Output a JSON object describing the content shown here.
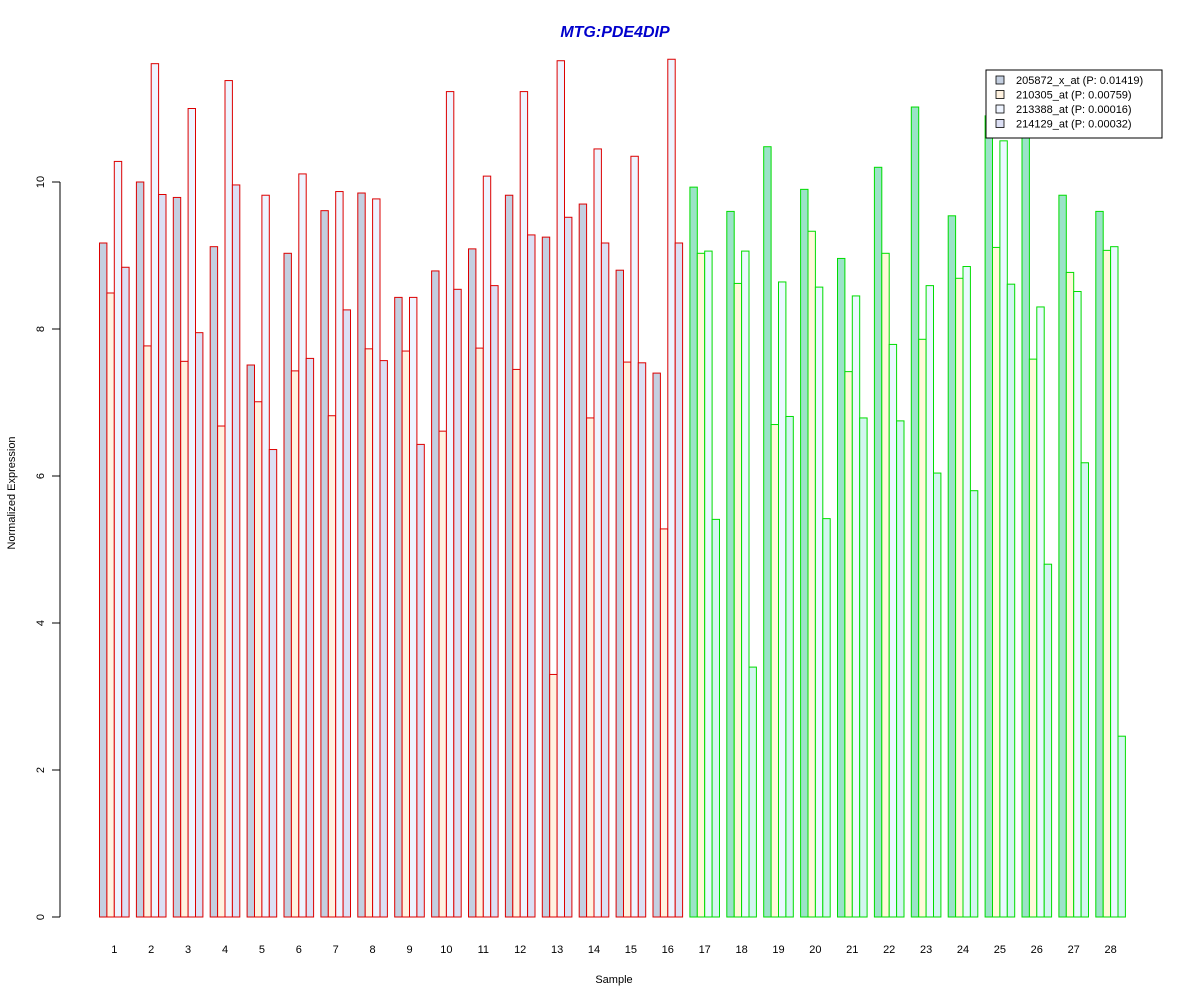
{
  "chart_data": {
    "type": "bar",
    "title": "MTG:PDE4DIP",
    "xlabel": "Sample",
    "ylabel": "Normalized Expression",
    "ylim": [
      0,
      12
    ],
    "y_ticks": [
      0,
      2,
      4,
      6,
      8,
      10
    ],
    "categories": [
      "1",
      "2",
      "3",
      "4",
      "5",
      "6",
      "7",
      "8",
      "9",
      "10",
      "11",
      "12",
      "13",
      "14",
      "15",
      "16",
      "17",
      "18",
      "19",
      "20",
      "21",
      "22",
      "23",
      "24",
      "25",
      "26",
      "27",
      "28"
    ],
    "group_outline_colors": [
      "#dd0000",
      "#dd0000",
      "#dd0000",
      "#dd0000",
      "#dd0000",
      "#dd0000",
      "#dd0000",
      "#dd0000",
      "#dd0000",
      "#dd0000",
      "#dd0000",
      "#dd0000",
      "#dd0000",
      "#dd0000",
      "#dd0000",
      "#dd0000",
      "#00dd00",
      "#00dd00",
      "#00dd00",
      "#00dd00",
      "#00dd00",
      "#00dd00",
      "#00dd00",
      "#00dd00",
      "#00dd00",
      "#00dd00",
      "#00dd00",
      "#00dd00"
    ],
    "series": [
      {
        "name": "205872_x_at (P: 0.01419)",
        "values": [
          9.17,
          10.0,
          9.79,
          9.12,
          7.51,
          9.03,
          9.61,
          9.85,
          8.43,
          8.79,
          9.09,
          9.82,
          9.25,
          9.7,
          8.8,
          7.4,
          9.93,
          9.6,
          10.48,
          9.9,
          8.96,
          10.2,
          11.02,
          9.54,
          10.9,
          10.9,
          9.82,
          9.6
        ],
        "fill_red": "#c4cfe0",
        "fill_green": "#9be3c8"
      },
      {
        "name": "210305_at (P: 0.00759)",
        "values": [
          8.49,
          7.77,
          7.56,
          6.68,
          7.01,
          7.43,
          6.82,
          7.73,
          7.7,
          6.61,
          7.74,
          7.45,
          3.3,
          6.79,
          7.55,
          5.28,
          9.03,
          8.62,
          6.7,
          9.33,
          7.42,
          9.03,
          7.86,
          8.69,
          9.11,
          7.59,
          8.77,
          9.07
        ],
        "fill_red": "#fff2e0",
        "fill_green": "#fff9d8"
      },
      {
        "name": "213388_at (P: 0.00016)",
        "values": [
          10.28,
          11.61,
          11.0,
          11.38,
          9.82,
          10.11,
          9.87,
          9.77,
          8.43,
          11.23,
          10.08,
          11.23,
          11.65,
          10.45,
          10.35,
          11.67,
          9.06,
          9.06,
          8.64,
          8.57,
          8.45,
          7.79,
          8.59,
          8.85,
          10.56,
          8.3,
          8.51,
          9.12
        ],
        "fill_red": "#eef4ff",
        "fill_green": "#eaf8ff"
      },
      {
        "name": "214129_at (P: 0.00032)",
        "values": [
          8.84,
          9.83,
          7.95,
          9.96,
          6.36,
          7.6,
          8.26,
          7.57,
          6.43,
          8.54,
          8.59,
          9.28,
          9.52,
          9.17,
          7.54,
          9.17,
          5.41,
          3.4,
          6.81,
          5.42,
          6.79,
          6.75,
          6.04,
          5.8,
          8.61,
          4.8,
          6.18,
          2.46
        ],
        "fill_red": "#dcdff4",
        "fill_green": "#d2f5f0"
      }
    ],
    "legend_placement": "top-right",
    "grid": false
  }
}
